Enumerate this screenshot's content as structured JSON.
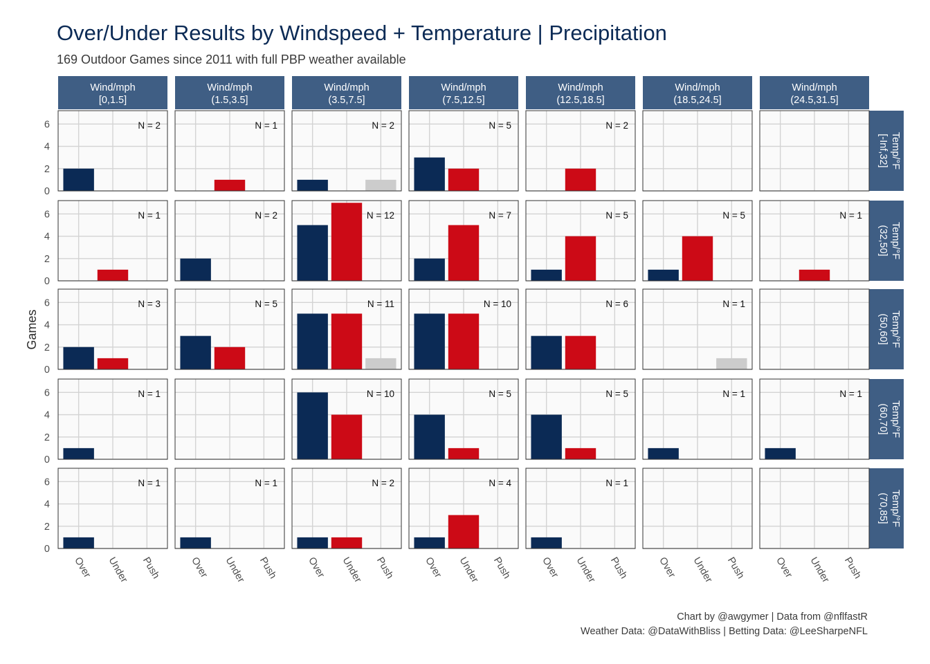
{
  "title": "Over/Under Results by Windspeed + Temperature | Precipitation",
  "subtitle": "169 Outdoor Games since 2011 with full PBP weather available",
  "caption_line1": "Chart by @awgymer | Data from @nflfastR",
  "caption_line2": "Weather Data: @DataWithBliss | Betting Data: @LeeSharpeNFL",
  "colors": {
    "Over": "#0b2a55",
    "Under": "#cc0a16",
    "Push": "#cccccc",
    "strip": "#3f5e84",
    "panel_bg": "#fafafa",
    "grid": "#d3d3d3"
  },
  "chart_data": {
    "type": "bar",
    "facet_cols_label": "Wind/mph",
    "facet_rows_label": "Temp/°F",
    "wind_bins": [
      "[0,1.5]",
      "(1.5,3.5]",
      "(3.5,7.5]",
      "(7.5,12.5]",
      "(12.5,18.5]",
      "(18.5,24.5]",
      "(24.5,31.5]"
    ],
    "temp_bins": [
      "[-Inf,32]",
      "(32,50]",
      "(50,60]",
      "(60,70]",
      "(70,85]"
    ],
    "categories": [
      "Over",
      "Under",
      "Push"
    ],
    "ylabel": "Games",
    "xlabel": "",
    "ylim": [
      0,
      7.2
    ],
    "yticks": [
      0,
      2,
      4,
      6
    ],
    "panels": [
      [
        {
          "n": "N = 2",
          "v": [
            2,
            0,
            0
          ]
        },
        {
          "n": "N = 1",
          "v": [
            0,
            1,
            0
          ]
        },
        {
          "n": "N = 2",
          "v": [
            1,
            0,
            1
          ]
        },
        {
          "n": "N = 5",
          "v": [
            3,
            2,
            0
          ]
        },
        {
          "n": "N = 2",
          "v": [
            0,
            2,
            0
          ]
        },
        {
          "n": "",
          "v": [
            0,
            0,
            0
          ]
        },
        {
          "n": "",
          "v": [
            0,
            0,
            0
          ]
        }
      ],
      [
        {
          "n": "N = 1",
          "v": [
            0,
            1,
            0
          ]
        },
        {
          "n": "N = 2",
          "v": [
            2,
            0,
            0
          ]
        },
        {
          "n": "N = 12",
          "v": [
            5,
            7,
            0
          ]
        },
        {
          "n": "N = 7",
          "v": [
            2,
            5,
            0
          ]
        },
        {
          "n": "N = 5",
          "v": [
            1,
            4,
            0
          ]
        },
        {
          "n": "N = 5",
          "v": [
            1,
            4,
            0
          ]
        },
        {
          "n": "N = 1",
          "v": [
            0,
            1,
            0
          ]
        }
      ],
      [
        {
          "n": "N = 3",
          "v": [
            2,
            1,
            0
          ]
        },
        {
          "n": "N = 5",
          "v": [
            3,
            2,
            0
          ]
        },
        {
          "n": "N = 11",
          "v": [
            5,
            5,
            1
          ]
        },
        {
          "n": "N = 10",
          "v": [
            5,
            5,
            0
          ]
        },
        {
          "n": "N = 6",
          "v": [
            3,
            3,
            0
          ]
        },
        {
          "n": "N = 1",
          "v": [
            0,
            0,
            1
          ]
        },
        {
          "n": "",
          "v": [
            0,
            0,
            0
          ]
        }
      ],
      [
        {
          "n": "N = 1",
          "v": [
            1,
            0,
            0
          ]
        },
        {
          "n": "",
          "v": [
            0,
            0,
            0
          ]
        },
        {
          "n": "N = 10",
          "v": [
            6,
            4,
            0
          ]
        },
        {
          "n": "N = 5",
          "v": [
            4,
            1,
            0
          ]
        },
        {
          "n": "N = 5",
          "v": [
            4,
            1,
            0
          ]
        },
        {
          "n": "N = 1",
          "v": [
            1,
            0,
            0
          ]
        },
        {
          "n": "N = 1",
          "v": [
            1,
            0,
            0
          ]
        }
      ],
      [
        {
          "n": "N = 1",
          "v": [
            1,
            0,
            0
          ]
        },
        {
          "n": "N = 1",
          "v": [
            1,
            0,
            0
          ]
        },
        {
          "n": "N = 2",
          "v": [
            1,
            1,
            0
          ]
        },
        {
          "n": "N = 4",
          "v": [
            1,
            3,
            0
          ]
        },
        {
          "n": "N = 1",
          "v": [
            1,
            0,
            0
          ]
        },
        {
          "n": "",
          "v": [
            0,
            0,
            0
          ]
        },
        {
          "n": "",
          "v": [
            0,
            0,
            0
          ]
        }
      ]
    ]
  }
}
